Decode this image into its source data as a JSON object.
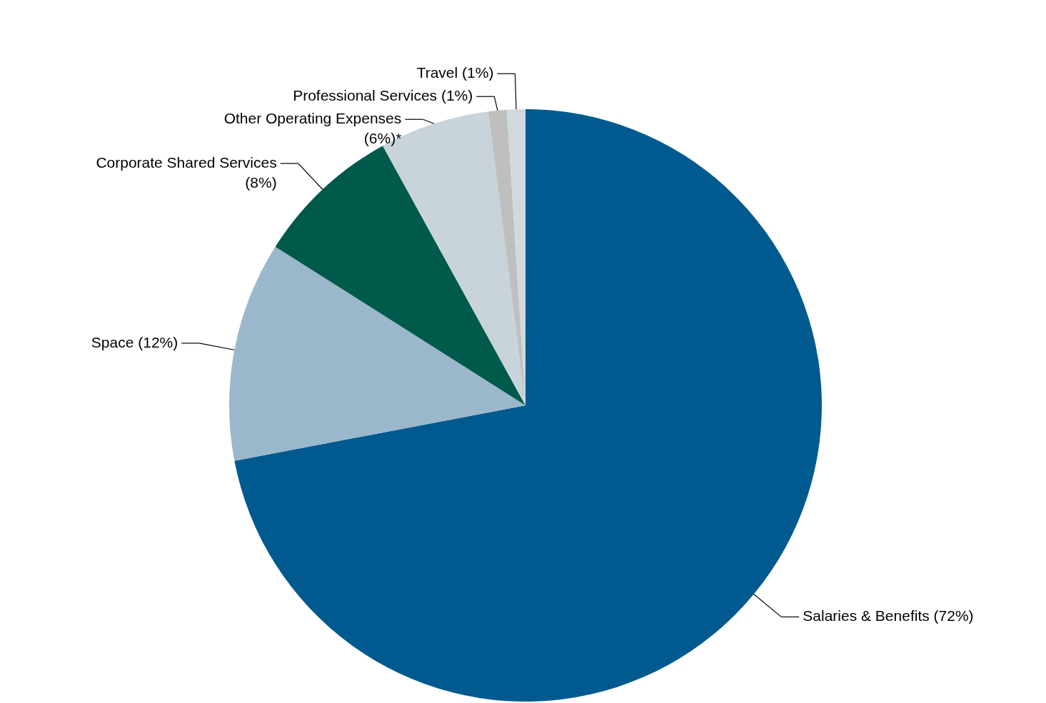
{
  "chart_data": {
    "type": "pie",
    "categories": [
      "Salaries & Benefits",
      "Space",
      "Corporate Shared Services",
      "Other Operating Expenses",
      "Professional Services",
      "Travel"
    ],
    "values": [
      72,
      12,
      8,
      6,
      1,
      1
    ],
    "value_labels": [
      "(72%)",
      "(12%)",
      "(8%)",
      "(6%)*",
      "(1%)",
      "(1%)"
    ],
    "colors": [
      "#005a8f",
      "#9bb7cb",
      "#005a4b",
      "#c8d4da",
      "#bfbfbf",
      "#d0d9de"
    ]
  }
}
